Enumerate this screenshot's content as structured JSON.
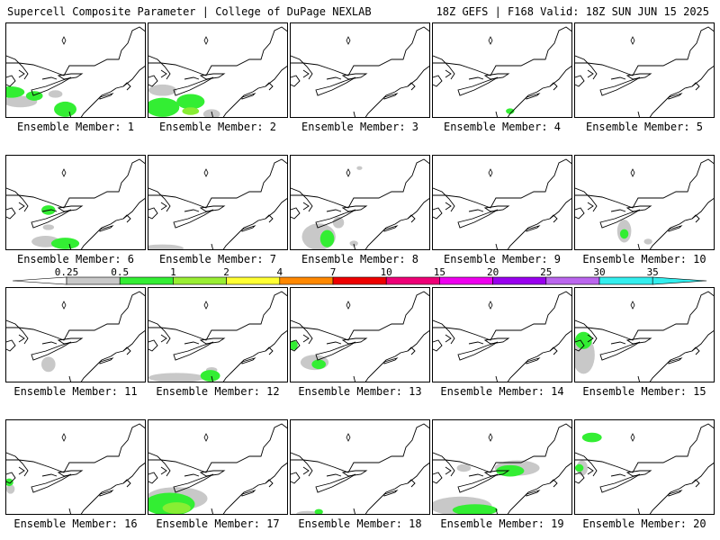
{
  "header": {
    "title": "Supercell Composite Parameter | College of DuPage NEXLAB",
    "run_info": "18Z GEFS | F168 Valid: 18Z SUN JUN 15 2025"
  },
  "legend": {
    "ticks": [
      "0.25",
      "0.5",
      "1",
      "2",
      "4",
      "7",
      "10",
      "15",
      "20",
      "25",
      "30",
      "35"
    ],
    "colors": [
      "#ffffff",
      "#c8c8c8",
      "#33ee33",
      "#99ee33",
      "#ffff33",
      "#ff8800",
      "#ee0000",
      "#ee0077",
      "#ee00ee",
      "#9900ee",
      "#bb66ee",
      "#33eeee"
    ]
  },
  "colors": {
    "light": "#c8c8c8",
    "green": "#33ee33",
    "lime": "#88ee33"
  },
  "panels": [
    {
      "label": "Ensemble Member: 1",
      "blobs": [
        [
          "g",
          0.03,
          0.72,
          0.1,
          0.06
        ],
        [
          "g",
          0.2,
          0.76,
          0.06,
          0.05
        ],
        [
          "g",
          0.42,
          0.9,
          0.08,
          0.08
        ],
        [
          "l",
          0.1,
          0.82,
          0.12,
          0.06
        ],
        [
          "l",
          0.35,
          0.74,
          0.05,
          0.04
        ]
      ]
    },
    {
      "label": "Ensemble Member: 2",
      "blobs": [
        [
          "g",
          0.1,
          0.88,
          0.12,
          0.1
        ],
        [
          "g",
          0.3,
          0.82,
          0.1,
          0.08
        ],
        [
          "y",
          0.3,
          0.92,
          0.06,
          0.04
        ],
        [
          "l",
          0.1,
          0.7,
          0.1,
          0.06
        ],
        [
          "l",
          0.45,
          0.95,
          0.06,
          0.05
        ]
      ]
    },
    {
      "label": "Ensemble Member: 3",
      "blobs": []
    },
    {
      "label": "Ensemble Member: 4",
      "blobs": [
        [
          "g",
          0.55,
          0.92,
          0.03,
          0.03
        ]
      ]
    },
    {
      "label": "Ensemble Member: 5",
      "blobs": []
    },
    {
      "label": "Ensemble Member: 6",
      "blobs": [
        [
          "g",
          0.3,
          0.57,
          0.05,
          0.05
        ],
        [
          "g",
          0.42,
          0.92,
          0.1,
          0.06
        ],
        [
          "l",
          0.28,
          0.9,
          0.1,
          0.06
        ],
        [
          "l",
          0.3,
          0.75,
          0.04,
          0.03
        ]
      ]
    },
    {
      "label": "Ensemble Member: 7",
      "blobs": [
        [
          "l",
          0.1,
          0.97,
          0.15,
          0.04
        ]
      ]
    },
    {
      "label": "Ensemble Member: 8",
      "blobs": [
        [
          "g",
          0.26,
          0.87,
          0.05,
          0.09
        ],
        [
          "l",
          0.2,
          0.85,
          0.12,
          0.14
        ],
        [
          "l",
          0.34,
          0.7,
          0.04,
          0.06
        ],
        [
          "l",
          0.45,
          0.92,
          0.03,
          0.03
        ],
        [
          "l",
          0.49,
          0.13,
          0.02,
          0.02
        ]
      ]
    },
    {
      "label": "Ensemble Member: 9",
      "blobs": []
    },
    {
      "label": "Ensemble Member: 10",
      "blobs": [
        [
          "g",
          0.35,
          0.82,
          0.03,
          0.05
        ],
        [
          "l",
          0.35,
          0.79,
          0.05,
          0.12
        ],
        [
          "l",
          0.52,
          0.9,
          0.03,
          0.03
        ]
      ]
    },
    {
      "label": "Ensemble Member: 11",
      "blobs": [
        [
          "l",
          0.3,
          0.8,
          0.05,
          0.08
        ]
      ]
    },
    {
      "label": "Ensemble Member: 12",
      "blobs": [
        [
          "g",
          0.44,
          0.92,
          0.07,
          0.06
        ],
        [
          "l",
          0.2,
          0.94,
          0.2,
          0.05
        ],
        [
          "l",
          0.45,
          0.86,
          0.04,
          0.03
        ]
      ]
    },
    {
      "label": "Ensemble Member: 13",
      "blobs": [
        [
          "g",
          0.2,
          0.8,
          0.05,
          0.05
        ],
        [
          "g",
          0.02,
          0.6,
          0.03,
          0.05
        ],
        [
          "l",
          0.17,
          0.78,
          0.1,
          0.08
        ]
      ]
    },
    {
      "label": "Ensemble Member: 14",
      "blobs": []
    },
    {
      "label": "Ensemble Member: 15",
      "blobs": [
        [
          "g",
          0.06,
          0.55,
          0.06,
          0.09
        ],
        [
          "l",
          0.06,
          0.7,
          0.08,
          0.2
        ]
      ]
    },
    {
      "label": "Ensemble Member: 16",
      "blobs": [
        [
          "g",
          0.02,
          0.65,
          0.03,
          0.04
        ],
        [
          "l",
          0.03,
          0.72,
          0.03,
          0.05
        ]
      ]
    },
    {
      "label": "Ensemble Member: 17",
      "blobs": [
        [
          "g",
          0.15,
          0.88,
          0.18,
          0.12
        ],
        [
          "y",
          0.2,
          0.92,
          0.1,
          0.06
        ],
        [
          "l",
          0.2,
          0.82,
          0.22,
          0.12
        ]
      ]
    },
    {
      "label": "Ensemble Member: 18",
      "blobs": [
        [
          "g",
          0.2,
          0.96,
          0.03,
          0.03
        ],
        [
          "l",
          0.12,
          0.98,
          0.08,
          0.03
        ]
      ]
    },
    {
      "label": "Ensemble Member: 19",
      "blobs": [
        [
          "g",
          0.55,
          0.53,
          0.1,
          0.06
        ],
        [
          "g",
          0.3,
          0.94,
          0.16,
          0.06
        ],
        [
          "l",
          0.6,
          0.5,
          0.16,
          0.08
        ],
        [
          "l",
          0.2,
          0.9,
          0.22,
          0.1
        ],
        [
          "l",
          0.22,
          0.5,
          0.05,
          0.04
        ]
      ]
    },
    {
      "label": "Ensemble Member: 20",
      "blobs": [
        [
          "g",
          0.12,
          0.18,
          0.07,
          0.05
        ],
        [
          "g",
          0.03,
          0.5,
          0.03,
          0.04
        ],
        [
          "l",
          0.05,
          0.5,
          0.04,
          0.08
        ]
      ]
    }
  ]
}
